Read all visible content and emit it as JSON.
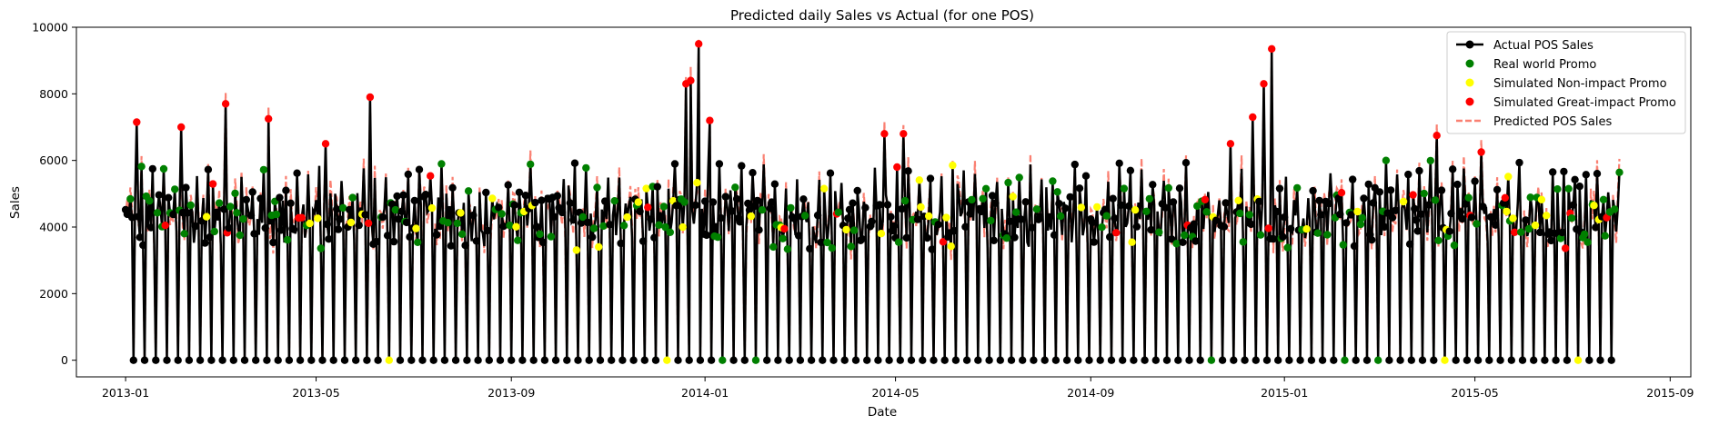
{
  "chart_data": {
    "type": "line",
    "title": "Predicted daily Sales vs Actual (for one POS)",
    "xlabel": "Date",
    "ylabel": "Sales",
    "xlim": [
      "2012-12-01",
      "2015-09-14"
    ],
    "ylim": [
      -500,
      10000
    ],
    "x_ticks": [
      "2013-01",
      "2013-05",
      "2013-09",
      "2014-01",
      "2014-05",
      "2014-09",
      "2015-01",
      "2015-05",
      "2015-09"
    ],
    "y_ticks": [
      0,
      2000,
      4000,
      6000,
      8000,
      10000
    ],
    "legend_position": "upper-right",
    "grid": false,
    "series": [
      {
        "name": "Actual POS Sales",
        "key": "actual",
        "color": "#000000",
        "style": "solid-line-with-markers"
      },
      {
        "name": "Real world Promo",
        "key": "promo_real",
        "color": "#008000",
        "style": "markers"
      },
      {
        "name": "Simulated Non-impact Promo",
        "key": "promo_none",
        "color": "#ffff00",
        "style": "markers"
      },
      {
        "name": "Simulated Great-impact Promo",
        "key": "promo_great",
        "color": "#ff0000",
        "style": "markers"
      },
      {
        "name": "Predicted POS Sales",
        "key": "predicted",
        "color": "#fa8072",
        "style": "dashed-line"
      }
    ],
    "weekly_pattern_approx": {
      "weekday": [
        4600,
        4300,
        4200,
        4100,
        5300,
        4000
      ],
      "sunday": 0
    },
    "peaks": [
      {
        "x": "2013-01-08",
        "y": 7150
      },
      {
        "x": "2013-02-05",
        "y": 7000
      },
      {
        "x": "2013-03-05",
        "y": 7700
      },
      {
        "x": "2013-04-01",
        "y": 7250
      },
      {
        "x": "2013-05-07",
        "y": 6500
      },
      {
        "x": "2013-06-04",
        "y": 7900
      },
      {
        "x": "2013-12-20",
        "y": 8300
      },
      {
        "x": "2013-12-23",
        "y": 8400
      },
      {
        "x": "2013-12-28",
        "y": 9500
      },
      {
        "x": "2014-01-04",
        "y": 7200
      },
      {
        "x": "2014-04-24",
        "y": 6800
      },
      {
        "x": "2014-05-06",
        "y": 6800
      },
      {
        "x": "2014-11-28",
        "y": 6500
      },
      {
        "x": "2014-12-12",
        "y": 7300
      },
      {
        "x": "2014-12-19",
        "y": 8300
      },
      {
        "x": "2014-12-24",
        "y": 9350
      },
      {
        "x": "2015-04-07",
        "y": 6750
      },
      {
        "x": "2015-05-05",
        "y": 6250
      }
    ],
    "date_range": [
      "2013-01-01",
      "2015-07-31"
    ]
  }
}
